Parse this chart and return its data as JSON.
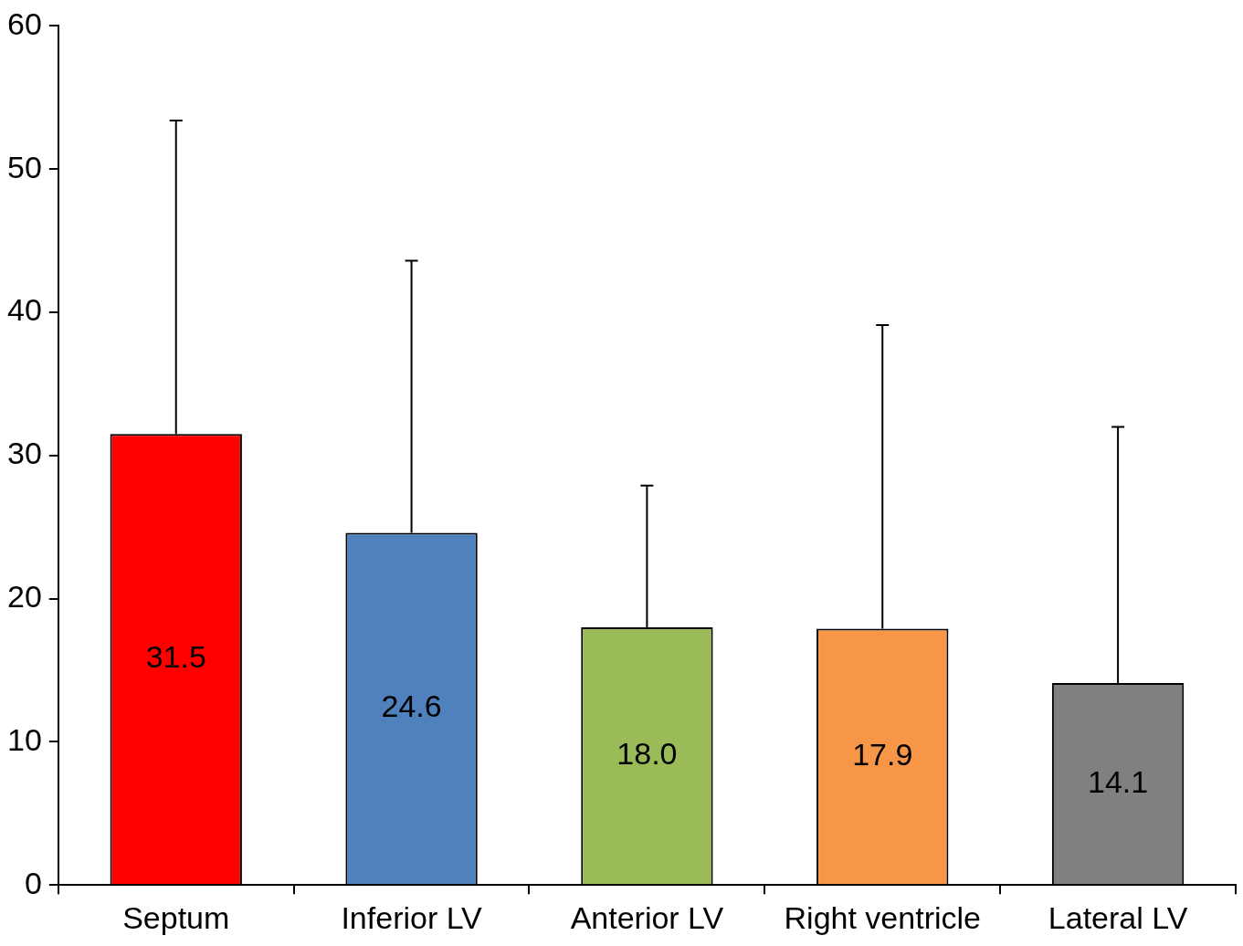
{
  "chart_data": {
    "type": "bar",
    "categories": [
      "Septum",
      "Inferior LV",
      "Anterior LV",
      "Right ventricle",
      "Lateral LV"
    ],
    "values": [
      31.5,
      24.6,
      18.0,
      17.9,
      14.1
    ],
    "colors": [
      "#ff0000",
      "#4f81bd",
      "#9bbb59",
      "#f79646",
      "#808080"
    ],
    "errors": [
      [
        31.5,
        53.4
      ],
      [
        24.6,
        43.6
      ],
      [
        18.0,
        27.9
      ],
      [
        17.9,
        39.1
      ],
      [
        14.1,
        32.0
      ]
    ],
    "value_labels": [
      "31.5",
      "24.6",
      "18.0",
      "17.9",
      "14.1"
    ],
    "ylim": [
      0,
      60
    ],
    "yticks": [
      0,
      10,
      20,
      30,
      40,
      50,
      60
    ],
    "grid": false,
    "legend": false
  }
}
